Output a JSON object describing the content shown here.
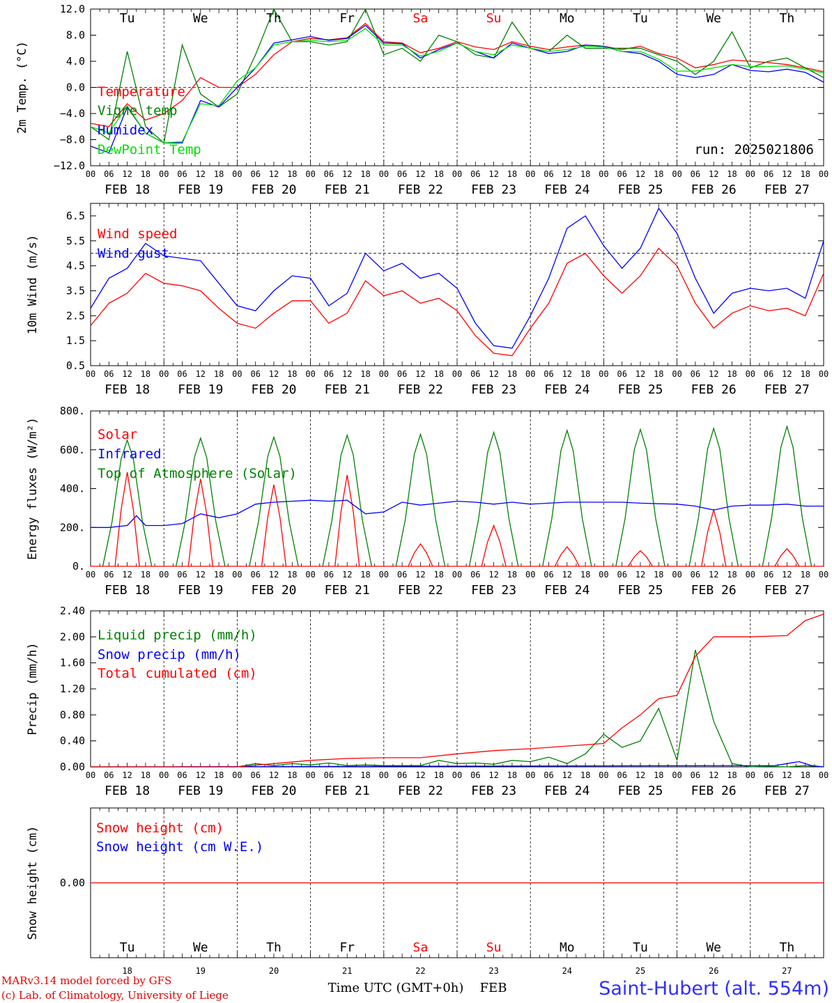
{
  "colors": {
    "red": "#ff0000",
    "green": "#008000",
    "blue": "#0000ff",
    "lightgreen": "#00e000",
    "station": "#3030ff"
  },
  "days": [
    "Tu",
    "We",
    "Th",
    "Fr",
    "Sa",
    "Su",
    "Mo",
    "Tu",
    "We",
    "Th"
  ],
  "weekend_days": [
    "Sa",
    "Su"
  ],
  "dates": [
    "FEB 18",
    "FEB 19",
    "FEB 20",
    "FEB 21",
    "FEB 22",
    "FEB 23",
    "FEB 24",
    "FEB 25",
    "FEB 26",
    "FEB 27"
  ],
  "hour_ticks": [
    "00",
    "06",
    "12",
    "18"
  ],
  "hour_tick_last": "00",
  "day_numbers": [
    "18",
    "19",
    "20",
    "21",
    "22",
    "23",
    "24",
    "25",
    "26",
    "27"
  ],
  "footer": {
    "credit1": "MARv3.14 model forced by GFS",
    "credit2": "(c) Lab. of Climatology, University of Liege",
    "xtitle": "Time UTC (GMT+0h)",
    "month": "FEB",
    "station": "Saint-Hubert (alt. 554m)"
  },
  "chart_data": [
    {
      "type": "line",
      "ylabel": "2m Temp. (°C)",
      "ylim": [
        -12,
        12
      ],
      "yticks": [
        "12.0",
        "8.0",
        "4.0",
        "0.0",
        "−4.0",
        "−8.0",
        "−12.0"
      ],
      "ref_line": 0,
      "annotation": "run: 2025021806",
      "x_unit": "hours since FEB 18 00 UTC",
      "series": [
        {
          "name": "Temperature",
          "color": "red",
          "x": [
            0,
            6,
            12,
            18,
            24,
            30,
            36,
            42,
            48,
            54,
            60,
            66,
            72,
            78,
            84,
            90,
            96,
            102,
            108,
            114,
            120,
            126,
            132,
            138,
            144,
            150,
            156,
            162,
            168,
            174,
            180,
            186,
            192,
            198,
            204,
            210,
            216,
            222,
            228,
            234,
            240
          ],
          "y": [
            -5.5,
            -6,
            -2.5,
            -5,
            -4,
            -2,
            1.5,
            0,
            0,
            2,
            5,
            7,
            7.5,
            7.3,
            7.6,
            9.8,
            7,
            6.8,
            5.3,
            6,
            7,
            6.2,
            5.8,
            7,
            6.3,
            5.8,
            6.2,
            6.5,
            6.3,
            5.8,
            6.3,
            5.2,
            4.5,
            3,
            3.5,
            4.2,
            4,
            3.8,
            3.5,
            3,
            2.4
          ]
        },
        {
          "name": "Vigne temp",
          "color": "green",
          "x": [
            0,
            6,
            12,
            18,
            24,
            30,
            36,
            42,
            48,
            54,
            60,
            66,
            72,
            78,
            84,
            90,
            96,
            102,
            108,
            114,
            120,
            126,
            132,
            138,
            144,
            150,
            156,
            162,
            168,
            174,
            180,
            186,
            192,
            198,
            204,
            210,
            216,
            222,
            228,
            234,
            240
          ],
          "y": [
            -6,
            -8,
            5.5,
            -6,
            -8.5,
            6.5,
            -1,
            -3,
            -1,
            5,
            12,
            7,
            7,
            6.5,
            7,
            12,
            5,
            6,
            4,
            8,
            7,
            5,
            4.5,
            10,
            6,
            5.5,
            8,
            6,
            6,
            6,
            6,
            5,
            4,
            2,
            4,
            8.5,
            3,
            4,
            4.5,
            3,
            1.5
          ]
        },
        {
          "name": "Humidex",
          "color": "blue",
          "x": [
            0,
            6,
            12,
            18,
            24,
            30,
            36,
            42,
            48,
            54,
            60,
            66,
            72,
            78,
            84,
            90,
            96,
            102,
            108,
            114,
            120,
            126,
            132,
            138,
            144,
            150,
            156,
            162,
            168,
            174,
            180,
            186,
            192,
            198,
            204,
            210,
            216,
            222,
            228,
            234,
            240
          ],
          "y": [
            -9,
            -10,
            -3,
            -7,
            -8.5,
            -8.5,
            -2,
            -3,
            0,
            3,
            6.8,
            7.3,
            7.8,
            7.2,
            7.5,
            9.5,
            6.8,
            6.7,
            4.5,
            5.8,
            6.8,
            5.5,
            4.5,
            6.8,
            6,
            5.2,
            5.5,
            6.5,
            6.3,
            5.5,
            5.2,
            4,
            2,
            1.5,
            2,
            3.5,
            2.6,
            2.4,
            2.8,
            2.3,
            0.8
          ]
        },
        {
          "name": "DewPoint Temp",
          "color": "lightgreen",
          "x": [
            0,
            6,
            12,
            18,
            24,
            30,
            36,
            42,
            48,
            54,
            60,
            66,
            72,
            78,
            84,
            90,
            96,
            102,
            108,
            114,
            120,
            126,
            132,
            138,
            144,
            150,
            156,
            162,
            168,
            174,
            180,
            186,
            192,
            198,
            204,
            210,
            216,
            222,
            228,
            234,
            240
          ],
          "y": [
            -6,
            -7,
            -2.8,
            -7,
            -8.5,
            -8.3,
            -2.5,
            -2.8,
            1,
            3,
            6.5,
            7,
            7.2,
            7,
            7.2,
            9,
            6.5,
            6.5,
            4.8,
            5.5,
            6.8,
            5.5,
            5,
            6.5,
            6,
            5.5,
            5.8,
            6.3,
            6.2,
            5.5,
            5.5,
            4.3,
            2.5,
            2.5,
            3,
            3.5,
            3.2,
            3.2,
            3.3,
            2.8,
            2.2
          ]
        }
      ]
    },
    {
      "type": "line",
      "ylabel": "10m Wind (m/s)",
      "ylim": [
        0.5,
        7
      ],
      "yticks": [
        "6.5",
        "5.5",
        "4.5",
        "3.5",
        "2.5",
        "1.5",
        "0.5"
      ],
      "ref_line": 5,
      "x_unit": "hours since FEB 18 00 UTC",
      "series": [
        {
          "name": "Wind speed",
          "color": "red",
          "x": [
            0,
            6,
            12,
            18,
            24,
            30,
            36,
            42,
            48,
            54,
            60,
            66,
            72,
            78,
            84,
            90,
            96,
            102,
            108,
            114,
            120,
            126,
            132,
            138,
            144,
            150,
            156,
            162,
            168,
            174,
            180,
            186,
            192,
            198,
            204,
            210,
            216,
            222,
            228,
            234,
            240
          ],
          "y": [
            2.1,
            3,
            3.4,
            4.2,
            3.8,
            3.7,
            3.5,
            2.8,
            2.2,
            2,
            2.6,
            3.1,
            3.1,
            2.2,
            2.6,
            3.9,
            3.3,
            3.5,
            3,
            3.2,
            2.7,
            1.7,
            1,
            0.9,
            2,
            3,
            4.6,
            5,
            4.1,
            3.4,
            4.1,
            5.2,
            4.5,
            3,
            2,
            2.6,
            2.9,
            2.7,
            2.8,
            2.5,
            4.2
          ]
        },
        {
          "name": "Wind gust",
          "color": "blue",
          "x": [
            0,
            6,
            12,
            18,
            24,
            30,
            36,
            42,
            48,
            54,
            60,
            66,
            72,
            78,
            84,
            90,
            96,
            102,
            108,
            114,
            120,
            126,
            132,
            138,
            144,
            150,
            156,
            162,
            168,
            174,
            180,
            186,
            192,
            198,
            204,
            210,
            216,
            222,
            228,
            234,
            240
          ],
          "y": [
            2.8,
            4,
            4.4,
            5.4,
            4.9,
            4.8,
            4.7,
            3.8,
            2.9,
            2.7,
            3.5,
            4.1,
            4,
            2.9,
            3.4,
            5,
            4.3,
            4.6,
            4,
            4.2,
            3.6,
            2.2,
            1.3,
            1.2,
            2.5,
            4,
            6,
            6.5,
            5.3,
            4.4,
            5.2,
            6.8,
            5.8,
            4,
            2.6,
            3.4,
            3.6,
            3.5,
            3.6,
            3.2,
            5.5
          ]
        }
      ]
    },
    {
      "type": "line",
      "ylabel": "Energy fluxes (W/m²)",
      "ylim": [
        0,
        800
      ],
      "yticks": [
        "800.",
        "600.",
        "400.",
        "200.",
        "0."
      ],
      "x_unit": "hours since FEB 18 00 UTC",
      "series": [
        {
          "name": "Solar",
          "color": "red",
          "daily_peaks": [
            485,
            450,
            420,
            470,
            115,
            210,
            100,
            80,
            290,
            90
          ]
        },
        {
          "name": "Infrared",
          "color": "blue",
          "x": [
            0,
            6,
            12,
            15,
            18,
            24,
            30,
            36,
            42,
            48,
            54,
            60,
            66,
            72,
            78,
            84,
            90,
            96,
            102,
            108,
            114,
            120,
            126,
            132,
            138,
            144,
            150,
            156,
            162,
            168,
            174,
            180,
            186,
            192,
            198,
            204,
            210,
            216,
            222,
            228,
            234,
            240
          ],
          "y": [
            200,
            200,
            210,
            260,
            210,
            210,
            220,
            270,
            250,
            270,
            320,
            330,
            335,
            340,
            335,
            340,
            270,
            280,
            330,
            315,
            325,
            335,
            330,
            320,
            330,
            320,
            325,
            330,
            330,
            330,
            330,
            325,
            322,
            320,
            310,
            290,
            310,
            315,
            315,
            320,
            310,
            310
          ]
        },
        {
          "name": "Top of Atmosphere (Solar)",
          "color": "green",
          "daily_peaks": [
            650,
            660,
            665,
            675,
            680,
            690,
            700,
            705,
            710,
            720
          ]
        }
      ]
    },
    {
      "type": "line",
      "ylabel": "Precip (mm/h)",
      "ylim": [
        0,
        2.4
      ],
      "yticks": [
        "2.40",
        "2.00",
        "1.60",
        "1.20",
        "0.80",
        "0.40",
        "0.00"
      ],
      "x_unit": "hours since FEB 18 00 UTC",
      "series": [
        {
          "name": "Liquid precip (mm/h)",
          "color": "green",
          "x": [
            0,
            48,
            54,
            60,
            66,
            72,
            78,
            84,
            90,
            96,
            108,
            114,
            120,
            126,
            132,
            138,
            144,
            150,
            156,
            162,
            168,
            174,
            180,
            186,
            192,
            198,
            204,
            210,
            216,
            222,
            228,
            234,
            240
          ],
          "y": [
            0,
            0,
            0.05,
            0.02,
            0.05,
            0.03,
            0.06,
            0.02,
            0.03,
            0.02,
            0.02,
            0.1,
            0.05,
            0.06,
            0.04,
            0.1,
            0.08,
            0.15,
            0.05,
            0.2,
            0.5,
            0.3,
            0.4,
            0.9,
            0.1,
            1.8,
            0.7,
            0.05,
            0,
            0.01,
            0,
            0.02,
            0
          ]
        },
        {
          "name": "Snow precip (mm/h)",
          "color": "blue",
          "x": [
            0,
            224,
            228,
            232,
            236,
            240
          ],
          "y": [
            0,
            0.02,
            0.05,
            0.08,
            0.02,
            0
          ]
        },
        {
          "name": "Total cumulated (cm)",
          "color": "red",
          "x": [
            0,
            48,
            60,
            72,
            84,
            96,
            108,
            120,
            132,
            144,
            156,
            168,
            174,
            180,
            186,
            192,
            198,
            204,
            216,
            228,
            234,
            240
          ],
          "y": [
            0,
            0,
            0.05,
            0.1,
            0.13,
            0.14,
            0.14,
            0.2,
            0.25,
            0.28,
            0.32,
            0.36,
            0.6,
            0.8,
            1.05,
            1.1,
            1.7,
            2.0,
            2.0,
            2.02,
            2.25,
            2.35
          ]
        }
      ]
    },
    {
      "type": "line",
      "ylabel": "Snow height (cm)",
      "ylim": [
        -1,
        1
      ],
      "yticks": [
        "0.00"
      ],
      "x_unit": "hours since FEB 18 00 UTC",
      "series": [
        {
          "name": "Snow height (cm)",
          "color": "red",
          "x": [
            0,
            240
          ],
          "y": [
            0,
            0
          ]
        },
        {
          "name": "Snow height (cm W.E.)",
          "color": "blue",
          "x": [],
          "y": []
        }
      ]
    }
  ]
}
